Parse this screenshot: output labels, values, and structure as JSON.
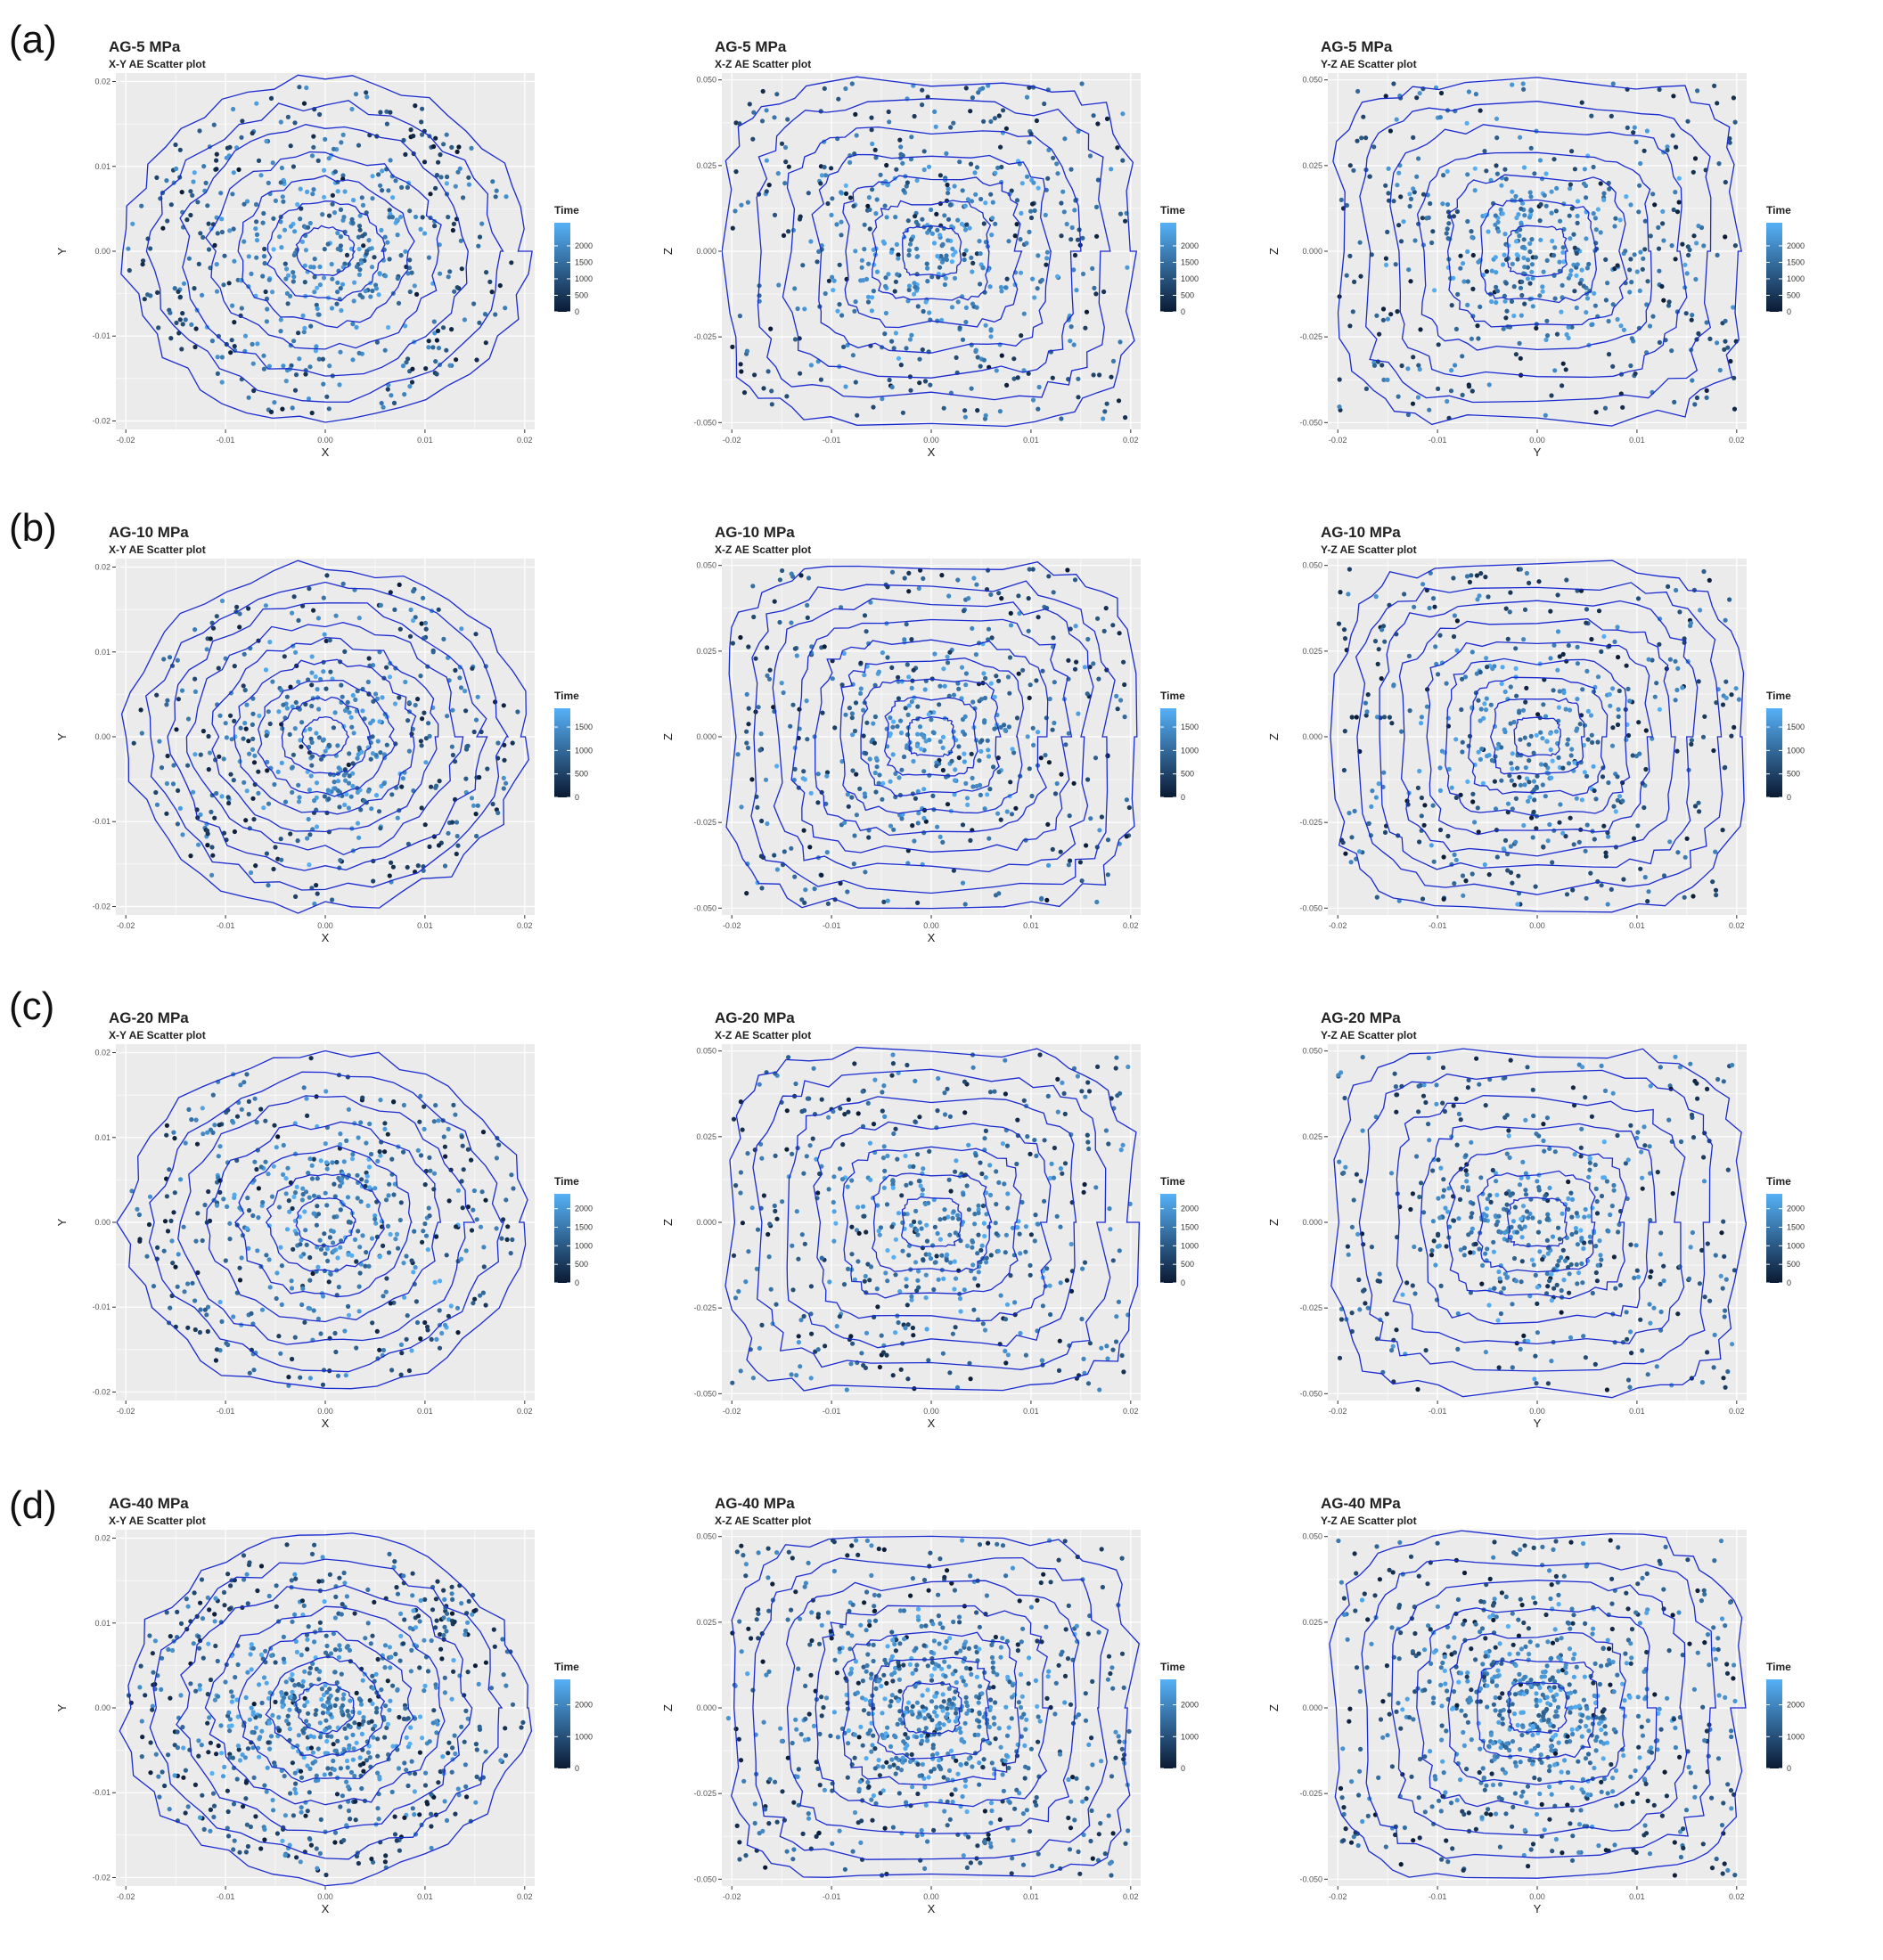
{
  "figure": {
    "row_labels": [
      "(a)",
      "(b)",
      "(c)",
      "(d)"
    ]
  },
  "colors": {
    "contour": "#1a2bcf",
    "panel_bg": "#ebebeb",
    "grid": "#ffffff",
    "time_low": "#0b1a33",
    "time_high": "#56b1f7"
  },
  "chart_data": [
    {
      "id": "a-xy",
      "type": "scatter",
      "title": "AG-5 MPa",
      "subtitle": "X-Y AE Scatter plot",
      "xlabel": "X",
      "ylabel": "Y",
      "xlim": [
        -0.021,
        0.021
      ],
      "ylim": [
        -0.021,
        0.021
      ],
      "xticks": [
        -0.02,
        -0.01,
        0.0,
        0.01,
        0.02
      ],
      "yticks": [
        -0.02,
        -0.01,
        0.0,
        0.01,
        0.02
      ],
      "xtick_labels": [
        "-0.02",
        "-0.01",
        "0.00",
        "0.01",
        "0.02"
      ],
      "ytick_labels": [
        "-0.02",
        "-0.01",
        "0.00",
        "0.01",
        "0.02"
      ],
      "legend": {
        "title": "Time",
        "position": "right",
        "max": 2700,
        "ticks": [
          0,
          500,
          1000,
          1500,
          2000
        ],
        "tick_labels": [
          "0",
          "500",
          "1000",
          "1500",
          "2000"
        ]
      }
    },
    {
      "id": "a-xz",
      "type": "scatter",
      "title": "AG-5 MPa",
      "subtitle": "X-Z AE Scatter plot",
      "xlabel": "X",
      "ylabel": "Z",
      "xlim": [
        -0.021,
        0.021
      ],
      "ylim": [
        -0.052,
        0.052
      ],
      "xticks": [
        -0.02,
        -0.01,
        0.0,
        0.01,
        0.02
      ],
      "yticks": [
        -0.05,
        -0.025,
        0.0,
        0.025,
        0.05
      ],
      "xtick_labels": [
        "-0.02",
        "-0.01",
        "0.00",
        "0.01",
        "0.02"
      ],
      "ytick_labels": [
        "-0.050",
        "-0.025",
        "0.000",
        "0.025",
        "0.050"
      ],
      "legend": {
        "title": "Time",
        "position": "right",
        "max": 2700,
        "ticks": [
          0,
          500,
          1000,
          1500,
          2000
        ],
        "tick_labels": [
          "0",
          "500",
          "1000",
          "1500",
          "2000"
        ]
      }
    },
    {
      "id": "a-yz",
      "type": "scatter",
      "title": "AG-5 MPa",
      "subtitle": "Y-Z AE Scatter plot",
      "xlabel": "Y",
      "ylabel": "Z",
      "xlim": [
        -0.021,
        0.021
      ],
      "ylim": [
        -0.052,
        0.052
      ],
      "xticks": [
        -0.02,
        -0.01,
        0.0,
        0.01,
        0.02
      ],
      "yticks": [
        -0.05,
        -0.025,
        0.0,
        0.025,
        0.05
      ],
      "xtick_labels": [
        "-0.02",
        "-0.01",
        "0.00",
        "0.01",
        "0.02"
      ],
      "ytick_labels": [
        "-0.050",
        "-0.025",
        "0.000",
        "0.025",
        "0.050"
      ],
      "legend": {
        "title": "Time",
        "position": "right",
        "max": 2700,
        "ticks": [
          0,
          500,
          1000,
          1500,
          2000
        ],
        "tick_labels": [
          "0",
          "500",
          "1000",
          "1500",
          "2000"
        ]
      }
    },
    {
      "id": "b-xy",
      "type": "scatter",
      "title": "AG-10 MPa",
      "subtitle": "X-Y AE Scatter plot",
      "xlabel": "X",
      "ylabel": "Y",
      "xlim": [
        -0.021,
        0.021
      ],
      "ylim": [
        -0.021,
        0.021
      ],
      "xticks": [
        -0.02,
        -0.01,
        0.0,
        0.01,
        0.02
      ],
      "yticks": [
        -0.02,
        -0.01,
        0.0,
        0.01,
        0.02
      ],
      "xtick_labels": [
        "-0.02",
        "-0.01",
        "0.00",
        "0.01",
        "0.02"
      ],
      "ytick_labels": [
        "-0.02",
        "-0.01",
        "0.00",
        "0.01",
        "0.02"
      ],
      "legend": {
        "title": "Time",
        "position": "right",
        "max": 1900,
        "ticks": [
          0,
          500,
          1000,
          1500
        ],
        "tick_labels": [
          "0",
          "500",
          "1000",
          "1500"
        ]
      }
    },
    {
      "id": "b-xz",
      "type": "scatter",
      "title": "AG-10 MPa",
      "subtitle": "X-Z AE Scatter plot",
      "xlabel": "X",
      "ylabel": "Z",
      "xlim": [
        -0.021,
        0.021
      ],
      "ylim": [
        -0.052,
        0.052
      ],
      "xticks": [
        -0.02,
        -0.01,
        0.0,
        0.01,
        0.02
      ],
      "yticks": [
        -0.05,
        -0.025,
        0.0,
        0.025,
        0.05
      ],
      "xtick_labels": [
        "-0.02",
        "-0.01",
        "0.00",
        "0.01",
        "0.02"
      ],
      "ytick_labels": [
        "-0.050",
        "-0.025",
        "0.000",
        "0.025",
        "0.050"
      ],
      "legend": {
        "title": "Time",
        "position": "right",
        "max": 1900,
        "ticks": [
          0,
          500,
          1000,
          1500
        ],
        "tick_labels": [
          "0",
          "500",
          "1000",
          "1500"
        ]
      }
    },
    {
      "id": "b-yz",
      "type": "scatter",
      "title": "AG-10 MPa",
      "subtitle": "Y-Z AE Scatter plot",
      "xlabel": "",
      "ylabel": "Z",
      "xlim": [
        -0.021,
        0.021
      ],
      "ylim": [
        -0.052,
        0.052
      ],
      "xticks": [
        -0.02,
        -0.01,
        0.0,
        0.01,
        0.02
      ],
      "yticks": [
        -0.05,
        -0.025,
        0.0,
        0.025,
        0.05
      ],
      "xtick_labels": [
        "-0.02",
        "-0.01",
        "0.00",
        "0.01",
        "0.02"
      ],
      "ytick_labels": [
        "-0.050",
        "-0.025",
        "0.000",
        "0.025",
        "0.050"
      ],
      "legend": {
        "title": "Time",
        "position": "right",
        "max": 1900,
        "ticks": [
          0,
          500,
          1000,
          1500
        ],
        "tick_labels": [
          "0",
          "500",
          "1000",
          "1500"
        ]
      }
    },
    {
      "id": "c-xy",
      "type": "scatter",
      "title": "AG-20 MPa",
      "subtitle": "X-Y AE Scatter plot",
      "xlabel": "X",
      "ylabel": "Y",
      "xlim": [
        -0.021,
        0.021
      ],
      "ylim": [
        -0.021,
        0.021
      ],
      "xticks": [
        -0.02,
        -0.01,
        0.0,
        0.01,
        0.02
      ],
      "yticks": [
        -0.02,
        -0.01,
        0.0,
        0.01,
        0.02
      ],
      "xtick_labels": [
        "-0.02",
        "-0.01",
        "0.00",
        "0.01",
        "0.02"
      ],
      "ytick_labels": [
        "-0.02",
        "-0.01",
        "0.00",
        "0.01",
        "0.02"
      ],
      "legend": {
        "title": "Time",
        "position": "right",
        "max": 2400,
        "ticks": [
          0,
          500,
          1000,
          1500,
          2000
        ],
        "tick_labels": [
          "0",
          "500",
          "1000",
          "1500",
          "2000"
        ]
      }
    },
    {
      "id": "c-xz",
      "type": "scatter",
      "title": "AG-20 MPa",
      "subtitle": "X-Z AE Scatter plot",
      "xlabel": "X",
      "ylabel": "Z",
      "xlim": [
        -0.021,
        0.021
      ],
      "ylim": [
        -0.052,
        0.052
      ],
      "xticks": [
        -0.02,
        -0.01,
        0.0,
        0.01,
        0.02
      ],
      "yticks": [
        -0.05,
        -0.025,
        0.0,
        0.025,
        0.05
      ],
      "xtick_labels": [
        "-0.02",
        "-0.01",
        "0.00",
        "0.01",
        "0.02"
      ],
      "ytick_labels": [
        "-0.050",
        "-0.025",
        "0.000",
        "0.025",
        "0.050"
      ],
      "legend": {
        "title": "Time",
        "position": "right",
        "max": 2400,
        "ticks": [
          0,
          500,
          1000,
          1500,
          2000
        ],
        "tick_labels": [
          "0",
          "500",
          "1000",
          "1500",
          "2000"
        ]
      }
    },
    {
      "id": "c-yz",
      "type": "scatter",
      "title": "AG-20 MPa",
      "subtitle": "Y-Z AE Scatter plot",
      "xlabel": "Y",
      "ylabel": "Z",
      "xlim": [
        -0.021,
        0.021
      ],
      "ylim": [
        -0.052,
        0.052
      ],
      "xticks": [
        -0.02,
        -0.01,
        0.0,
        0.01,
        0.02
      ],
      "yticks": [
        -0.05,
        -0.025,
        0.0,
        0.025,
        0.05
      ],
      "xtick_labels": [
        "-0.02",
        "-0.01",
        "0.00",
        "0.01",
        "0.02"
      ],
      "ytick_labels": [
        "-0.050",
        "-0.025",
        "0.000",
        "0.025",
        "0.050"
      ],
      "legend": {
        "title": "Time",
        "position": "right",
        "max": 2400,
        "ticks": [
          0,
          500,
          1000,
          1500,
          2000
        ],
        "tick_labels": [
          "0",
          "500",
          "1000",
          "1500",
          "2000"
        ]
      }
    },
    {
      "id": "d-xy",
      "type": "scatter",
      "title": "AG-40 MPa",
      "subtitle": "X-Y AE Scatter plot",
      "xlabel": "X",
      "ylabel": "Y",
      "xlim": [
        -0.021,
        0.021
      ],
      "ylim": [
        -0.021,
        0.021
      ],
      "xticks": [
        -0.02,
        -0.01,
        0.0,
        0.01,
        0.02
      ],
      "yticks": [
        -0.02,
        -0.01,
        0.0,
        0.01,
        0.02
      ],
      "xtick_labels": [
        "-0.02",
        "-0.01",
        "0.00",
        "0.01",
        "0.02"
      ],
      "ytick_labels": [
        "-0.02",
        "-0.01",
        "0.00",
        "0.01",
        "0.02"
      ],
      "legend": {
        "title": "Time",
        "position": "right",
        "max": 2800,
        "ticks": [
          0,
          1000,
          2000
        ],
        "tick_labels": [
          "0",
          "1000",
          "2000"
        ]
      }
    },
    {
      "id": "d-xz",
      "type": "scatter",
      "title": "AG-40 MPa",
      "subtitle": "X-Z AE Scatter plot",
      "xlabel": "X",
      "ylabel": "Z",
      "xlim": [
        -0.021,
        0.021
      ],
      "ylim": [
        -0.052,
        0.052
      ],
      "xticks": [
        -0.02,
        -0.01,
        0.0,
        0.01,
        0.02
      ],
      "yticks": [
        -0.05,
        -0.025,
        0.0,
        0.025,
        0.05
      ],
      "xtick_labels": [
        "-0.02",
        "-0.01",
        "0.00",
        "0.01",
        "0.02"
      ],
      "ytick_labels": [
        "-0.050",
        "-0.025",
        "0.000",
        "0.025",
        "0.050"
      ],
      "legend": {
        "title": "Time",
        "position": "right",
        "max": 2800,
        "ticks": [
          0,
          1000,
          2000
        ],
        "tick_labels": [
          "0",
          "1000",
          "2000"
        ]
      }
    },
    {
      "id": "d-yz",
      "type": "scatter",
      "title": "AG-40 MPa",
      "subtitle": "Y-Z AE Scatter plot",
      "xlabel": "Y",
      "ylabel": "Z",
      "xlim": [
        -0.021,
        0.021
      ],
      "ylim": [
        -0.052,
        0.052
      ],
      "xticks": [
        -0.02,
        -0.01,
        0.0,
        0.01,
        0.02
      ],
      "yticks": [
        -0.05,
        -0.025,
        0.0,
        0.025,
        0.05
      ],
      "xtick_labels": [
        "-0.02",
        "-0.01",
        "0.00",
        "0.01",
        "0.02"
      ],
      "ytick_labels": [
        "-0.050",
        "-0.025",
        "0.000",
        "0.025",
        "0.050"
      ],
      "legend": {
        "title": "Time",
        "position": "right",
        "max": 2800,
        "ticks": [
          0,
          1000,
          2000
        ],
        "tick_labels": [
          "0",
          "1000",
          "2000"
        ]
      }
    }
  ]
}
